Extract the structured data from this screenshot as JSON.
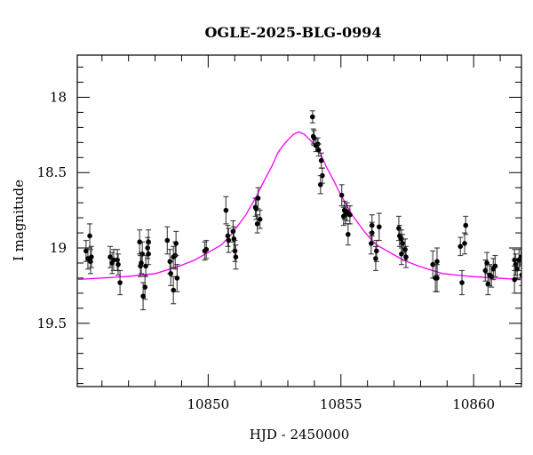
{
  "chart_data": {
    "type": "scatter",
    "title": "OGLE-2025-BLG-0994",
    "xlabel": "HJD - 2450000",
    "ylabel": "I magnitude",
    "xlim": [
      10845.07,
      10861.8
    ],
    "ylim": [
      19.92,
      17.72
    ],
    "y_inverted": true,
    "grid": false,
    "xticks": [
      10850,
      10855,
      10860
    ],
    "xtick_labels": [
      "10850",
      "10855",
      "10860"
    ],
    "yticks": [
      18,
      18.5,
      19,
      19.5
    ],
    "ytick_labels": [
      "18",
      "18.5",
      "19",
      "19.5"
    ],
    "colors": {
      "data": "#000000",
      "model": "#ff00ff"
    },
    "series": [
      {
        "name": "data",
        "points": [
          [
            10845.4,
            19.02,
            0.07
          ],
          [
            10845.54,
            18.92,
            0.08
          ],
          [
            10845.47,
            19.07,
            0.07
          ],
          [
            10845.57,
            19.09,
            0.08
          ],
          [
            10845.6,
            19.06,
            0.07
          ],
          [
            10846.31,
            19.06,
            0.07
          ],
          [
            10846.38,
            19.1,
            0.07
          ],
          [
            10846.44,
            19.08,
            0.07
          ],
          [
            10846.58,
            19.08,
            0.07
          ],
          [
            10846.61,
            19.11,
            0.07
          ],
          [
            10846.68,
            19.23,
            0.08
          ],
          [
            10847.42,
            18.96,
            0.08
          ],
          [
            10847.45,
            19.12,
            0.07
          ],
          [
            10847.52,
            19.04,
            0.08
          ],
          [
            10847.48,
            19.1,
            0.07
          ],
          [
            10847.62,
            19.26,
            0.08
          ],
          [
            10847.55,
            19.32,
            0.09
          ],
          [
            10847.65,
            19.12,
            0.07
          ],
          [
            10847.72,
            19.0,
            0.07
          ],
          [
            10847.75,
            18.96,
            0.08
          ],
          [
            10847.75,
            19.04,
            0.07
          ],
          [
            10848.46,
            18.95,
            0.09
          ],
          [
            10848.56,
            19.09,
            0.08
          ],
          [
            10848.59,
            19.17,
            0.08
          ],
          [
            10848.69,
            19.06,
            0.07
          ],
          [
            10848.69,
            19.28,
            0.09
          ],
          [
            10848.76,
            19.05,
            0.09
          ],
          [
            10848.79,
            18.97,
            0.08
          ],
          [
            10848.83,
            19.2,
            0.09
          ],
          [
            10849.87,
            19.02,
            0.06
          ],
          [
            10849.93,
            19.01,
            0.06
          ],
          [
            10850.67,
            18.75,
            0.09
          ],
          [
            10850.74,
            18.92,
            0.07
          ],
          [
            10850.77,
            18.95,
            0.08
          ],
          [
            10850.94,
            18.89,
            0.07
          ],
          [
            10850.97,
            18.94,
            0.08
          ],
          [
            10851.01,
            19.02,
            0.07
          ],
          [
            10851.04,
            19.06,
            0.08
          ],
          [
            10851.78,
            18.73,
            0.06
          ],
          [
            10851.81,
            18.74,
            0.07
          ],
          [
            10851.88,
            18.67,
            0.07
          ],
          [
            10851.85,
            18.84,
            0.06
          ],
          [
            10851.95,
            18.81,
            0.06
          ],
          [
            10853.93,
            18.13,
            0.04
          ],
          [
            10853.96,
            18.26,
            0.05
          ],
          [
            10853.99,
            18.27,
            0.05
          ],
          [
            10854.06,
            18.32,
            0.04
          ],
          [
            10854.13,
            18.31,
            0.04
          ],
          [
            10854.16,
            18.35,
            0.04
          ],
          [
            10854.26,
            18.42,
            0.05
          ],
          [
            10854.3,
            18.52,
            0.05
          ],
          [
            10854.23,
            18.58,
            0.06
          ],
          [
            10855.03,
            18.65,
            0.07
          ],
          [
            10855.1,
            18.79,
            0.06
          ],
          [
            10855.13,
            18.75,
            0.06
          ],
          [
            10855.17,
            18.78,
            0.06
          ],
          [
            10855.23,
            18.76,
            0.06
          ],
          [
            10855.34,
            18.78,
            0.06
          ],
          [
            10855.27,
            18.91,
            0.07
          ],
          [
            10856.17,
            18.85,
            0.07
          ],
          [
            10856.17,
            18.9,
            0.07
          ],
          [
            10856.14,
            18.97,
            0.07
          ],
          [
            10856.31,
            19.07,
            0.08
          ],
          [
            10856.34,
            19.02,
            0.07
          ],
          [
            10856.44,
            18.86,
            0.09
          ],
          [
            10857.18,
            18.87,
            0.08
          ],
          [
            10857.21,
            18.92,
            0.07
          ],
          [
            10857.28,
            18.94,
            0.06
          ],
          [
            10857.32,
            18.97,
            0.06
          ],
          [
            10857.28,
            19.04,
            0.07
          ],
          [
            10857.42,
            19.01,
            0.07
          ],
          [
            10857.45,
            19.06,
            0.07
          ],
          [
            10858.46,
            19.11,
            0.09
          ],
          [
            10858.56,
            19.2,
            0.09
          ],
          [
            10858.62,
            19.09,
            0.09
          ],
          [
            10858.62,
            19.2,
            0.09
          ],
          [
            10859.5,
            18.99,
            0.06
          ],
          [
            10859.66,
            18.97,
            0.07
          ],
          [
            10859.7,
            18.85,
            0.06
          ],
          [
            10859.56,
            19.23,
            0.08
          ],
          [
            10860.44,
            19.15,
            0.07
          ],
          [
            10860.5,
            19.1,
            0.07
          ],
          [
            10860.54,
            19.24,
            0.07
          ],
          [
            10860.6,
            19.18,
            0.07
          ],
          [
            10860.67,
            19.19,
            0.07
          ],
          [
            10860.74,
            19.14,
            0.07
          ],
          [
            10860.81,
            19.12,
            0.07
          ],
          [
            10861.54,
            19.08,
            0.07
          ],
          [
            10861.58,
            19.11,
            0.07
          ],
          [
            10861.64,
            19.14,
            0.07
          ],
          [
            10861.71,
            19.08,
            0.07
          ],
          [
            10861.78,
            19.06,
            0.06
          ],
          [
            10861.54,
            19.21,
            0.09
          ],
          [
            10861.81,
            19.18,
            0.07
          ]
        ]
      },
      {
        "name": "model",
        "t0": 10853.42,
        "dt": [
          0,
          0.2,
          0.4,
          0.6,
          0.8,
          1.0,
          1.3,
          1.58,
          2.0,
          2.5,
          2.92,
          3.42,
          3.93,
          4.5,
          5.4,
          6.5,
          8.4,
          10
        ],
        "mag": [
          18.23,
          18.245,
          18.28,
          18.32,
          18.37,
          18.45,
          18.55,
          18.65,
          18.78,
          18.9,
          18.98,
          19.03,
          19.08,
          19.12,
          19.17,
          19.19,
          19.21,
          19.215
        ]
      }
    ]
  }
}
